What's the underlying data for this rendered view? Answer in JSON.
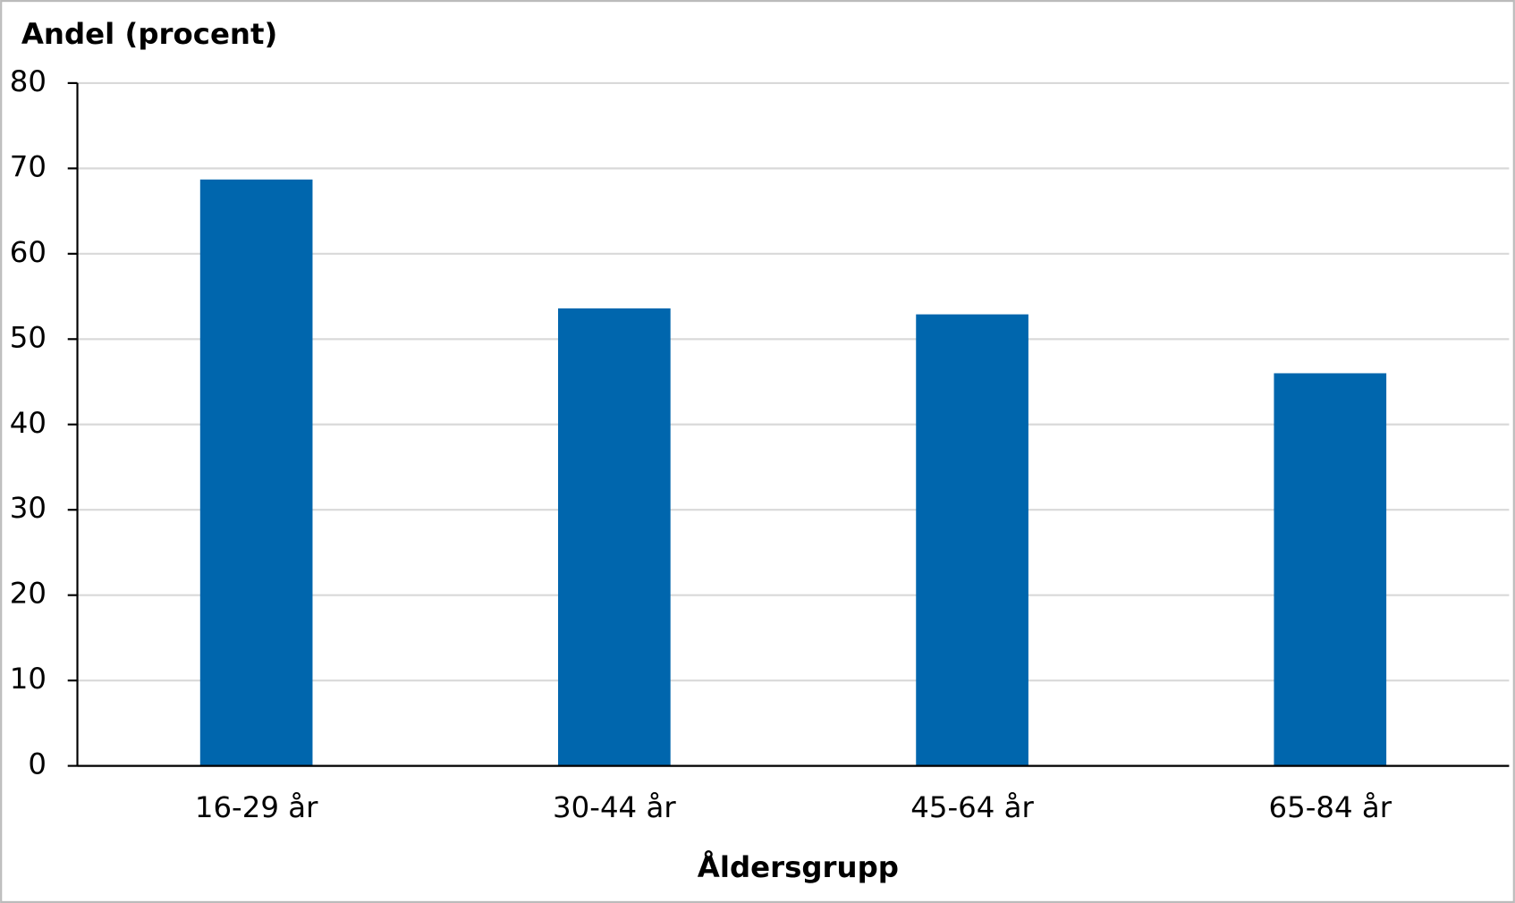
{
  "chart_data": {
    "type": "bar",
    "y_axis_label": "Andel (procent)",
    "x_axis_label": "Åldersgrupp",
    "categories": [
      "16-29 år",
      "30-44 år",
      "45-64 år",
      "65-84 år"
    ],
    "values": [
      68.7,
      53.6,
      52.9,
      46.0
    ],
    "color": "#0066ad",
    "ylim": [
      0,
      80
    ],
    "yticks": [
      0,
      10,
      20,
      30,
      40,
      50,
      60,
      70,
      80
    ],
    "grid": true
  }
}
